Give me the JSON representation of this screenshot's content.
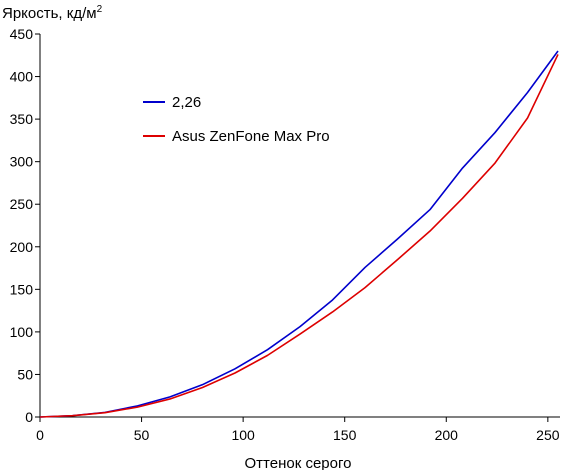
{
  "chart_data": {
    "type": "line",
    "title": "",
    "ylabel": "Яркость, кд/м",
    "ylabel_superscript": "2",
    "xlabel": "Оттенок серого",
    "xlim": [
      0,
      255
    ],
    "ylim": [
      0,
      450
    ],
    "x_ticks": [
      "0",
      "50",
      "100",
      "150",
      "200",
      "250"
    ],
    "y_ticks": [
      "0",
      "50",
      "100",
      "150",
      "200",
      "250",
      "300",
      "350",
      "400",
      "450"
    ],
    "grid": false,
    "legend_position": "upper-left",
    "series": [
      {
        "name": "2,26",
        "color": "#0000cc",
        "x": [
          0,
          16,
          32,
          48,
          64,
          80,
          96,
          112,
          128,
          144,
          160,
          176,
          192,
          208,
          224,
          240,
          255
        ],
        "y": [
          0,
          1.6,
          5.4,
          13.1,
          23.6,
          38.0,
          56.6,
          79.1,
          106.2,
          137.5,
          175.7,
          209.1,
          243.7,
          292.5,
          334.2,
          381.3,
          430
        ]
      },
      {
        "name": "Asus ZenFone Max Pro",
        "color": "#dd0000",
        "x": [
          0,
          16,
          32,
          48,
          64,
          80,
          96,
          112,
          128,
          144,
          160,
          176,
          192,
          208,
          224,
          240,
          255
        ],
        "y": [
          0,
          1.5,
          5.1,
          11.6,
          21.2,
          34.7,
          51.7,
          72.4,
          97.5,
          123.4,
          152.0,
          184.9,
          218.5,
          256.9,
          298.4,
          351.3,
          426
        ]
      }
    ]
  }
}
